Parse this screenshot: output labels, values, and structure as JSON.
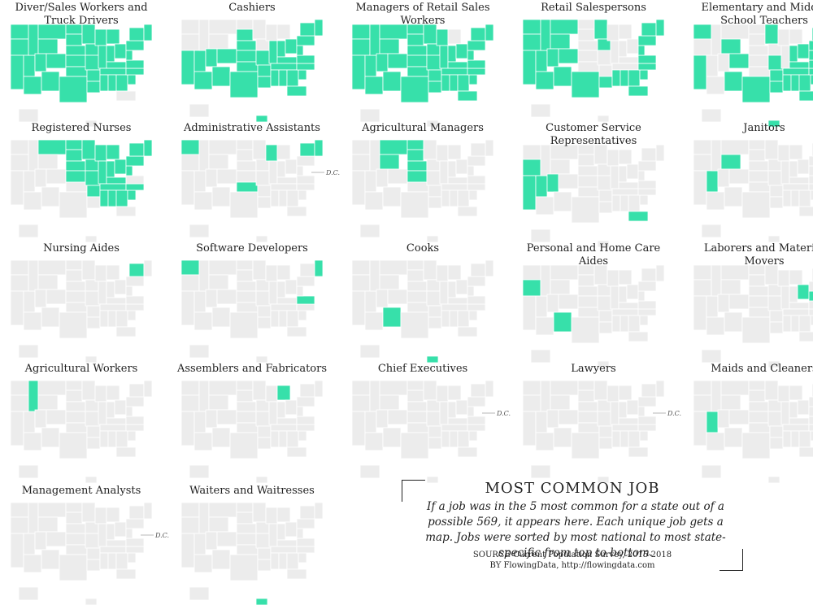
{
  "colors": {
    "highlight": "#37e0aa",
    "land": "#ececec",
    "border": "#ffffff",
    "text": "#222222"
  },
  "dc_label": "D.C.",
  "maps": [
    {
      "title": "Diver/Sales Workers and Truck Drivers",
      "states": [
        "WA",
        "OR",
        "CA",
        "NV",
        "ID",
        "MT",
        "WY",
        "UT",
        "AZ",
        "CO",
        "NM",
        "ND",
        "SD",
        "NE",
        "KS",
        "OK",
        "TX",
        "MN",
        "IA",
        "MO",
        "AR",
        "LA",
        "WI",
        "IL",
        "MI",
        "IN",
        "KY",
        "TN",
        "MS",
        "AL",
        "GA",
        "SC",
        "NC",
        "VA",
        "WV",
        "OH",
        "PA",
        "NY",
        "ME"
      ],
      "dc": false
    },
    {
      "title": "Cashiers",
      "states": [
        "CA",
        "NV",
        "AZ",
        "UT",
        "NM",
        "TX",
        "OK",
        "KS",
        "NE",
        "SD",
        "CO",
        "MO",
        "AR",
        "LA",
        "MS",
        "AL",
        "TN",
        "KY",
        "IL",
        "IN",
        "OH",
        "WV",
        "VA",
        "NC",
        "SC",
        "GA",
        "FL",
        "PA",
        "NY",
        "ME",
        "HI"
      ],
      "dc": false
    },
    {
      "title": "Managers of Retail Sales Workers",
      "states": [
        "WA",
        "OR",
        "CA",
        "NV",
        "ID",
        "MT",
        "WY",
        "UT",
        "AZ",
        "CO",
        "NM",
        "ND",
        "SD",
        "NE",
        "KS",
        "OK",
        "TX",
        "MN",
        "IA",
        "MO",
        "AR",
        "LA",
        "WI",
        "IL",
        "IN",
        "KY",
        "TN",
        "MS",
        "AL",
        "GA",
        "FL",
        "SC",
        "NC",
        "VA",
        "WV",
        "OH",
        "NY",
        "PA",
        "ME"
      ],
      "dc": false
    },
    {
      "title": "Retail Salespersons",
      "states": [
        "WA",
        "OR",
        "CA",
        "NV",
        "ID",
        "MT",
        "WY",
        "UT",
        "AZ",
        "CO",
        "NM",
        "TX",
        "MN",
        "IA",
        "LA",
        "MS",
        "AL",
        "GA",
        "FL",
        "SC",
        "NC",
        "VA",
        "WV",
        "PA",
        "NY",
        "ME"
      ],
      "dc": false
    },
    {
      "title": "Elementary and Middle School Teachers",
      "states": [
        "WA",
        "CA",
        "WY",
        "CO",
        "NM",
        "TX",
        "MN",
        "MO",
        "AR",
        "LA",
        "MS",
        "AL",
        "GA",
        "FL",
        "SC",
        "NC",
        "VA",
        "WV",
        "OH",
        "IN",
        "KY",
        "TN",
        "PA",
        "NY",
        "ME",
        "HI"
      ],
      "dc": false
    },
    {
      "title": "Registered Nurses",
      "states": [
        "MT",
        "ND",
        "SD",
        "NE",
        "KS",
        "IA",
        "MN",
        "WI",
        "MI",
        "IL",
        "IN",
        "OH",
        "KY",
        "TN",
        "MO",
        "AR",
        "MS",
        "AL",
        "GA",
        "SC",
        "NC",
        "WV",
        "PA",
        "NY",
        "ME"
      ],
      "dc": false
    },
    {
      "title": "Administrative Assistants",
      "states": [
        "WA",
        "WI",
        "OK",
        "NY",
        "ME"
      ],
      "dc": true
    },
    {
      "title": "Agricultural Managers",
      "states": [
        "MT",
        "ND",
        "SD",
        "NE",
        "KS",
        "WY"
      ],
      "dc": false
    },
    {
      "title": "Customer Service Representatives",
      "states": [
        "OR",
        "NV",
        "UT",
        "CA",
        "FL"
      ],
      "dc": false
    },
    {
      "title": "Janitors",
      "states": [
        "NV",
        "WY"
      ],
      "dc": true
    },
    {
      "title": "Nursing Aides",
      "states": [
        "NY"
      ],
      "dc": false
    },
    {
      "title": "Software Developers",
      "states": [
        "WA",
        "VA",
        "ME"
      ],
      "dc": false
    },
    {
      "title": "Cooks",
      "states": [
        "NM",
        "HI"
      ],
      "dc": false
    },
    {
      "title": "Personal and Home Care Aides",
      "states": [
        "OR",
        "NM"
      ],
      "dc": false
    },
    {
      "title": "Laborers and Material Movers",
      "states": [
        "OH",
        "WV"
      ],
      "dc": false
    },
    {
      "title": "Agricultural Workers",
      "states": [
        "ID"
      ],
      "dc": false
    },
    {
      "title": "Assemblers and Fabricators",
      "states": [
        "MI"
      ],
      "dc": false
    },
    {
      "title": "Chief Executives",
      "states": [],
      "dc": true
    },
    {
      "title": "Lawyers",
      "states": [],
      "dc": true
    },
    {
      "title": "Maids and Cleaners",
      "states": [
        "NV"
      ],
      "dc": false
    },
    {
      "title": "Management Analysts",
      "states": [],
      "dc": true
    },
    {
      "title": "Waiters and Waitresses",
      "states": [
        "HI"
      ],
      "dc": false
    }
  ],
  "legend": {
    "title": "MOST COMMON JOB",
    "description": "If a job was in the 5 most common for a state out of a possible 569, it appears here. Each unique job gets a map. Jobs were sorted by most national to most state-specific from top to bottom.",
    "source_label": "SOURCE",
    "source_text": "Current Population Survey, 2015-2018",
    "by_label": "BY",
    "by_text": "FlowingData, http://flowingdata.com"
  }
}
